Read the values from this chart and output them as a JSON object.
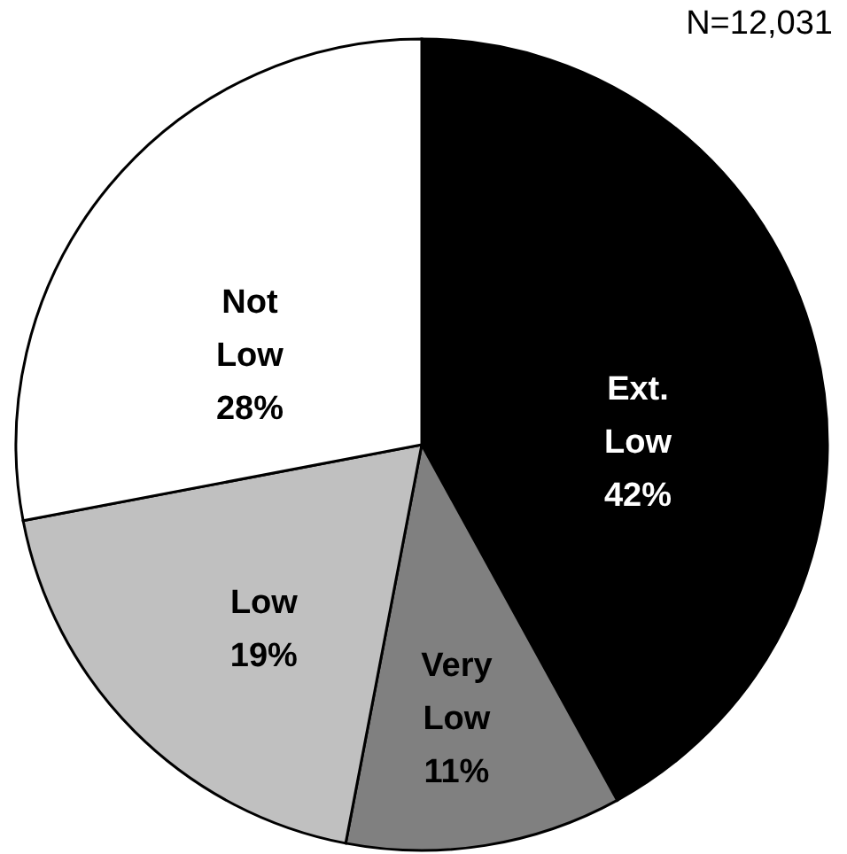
{
  "chart_data": {
    "type": "pie",
    "categories": [
      "Ext. Low",
      "Very Low",
      "Low",
      "Not Low"
    ],
    "values": [
      42,
      11,
      19,
      28
    ],
    "colors": [
      "#000000",
      "#808080",
      "#c0c0c0",
      "#ffffff"
    ],
    "value_labels": [
      "42%",
      "11%",
      "19%",
      "28%"
    ],
    "annotations": [
      "N=12,031"
    ]
  }
}
